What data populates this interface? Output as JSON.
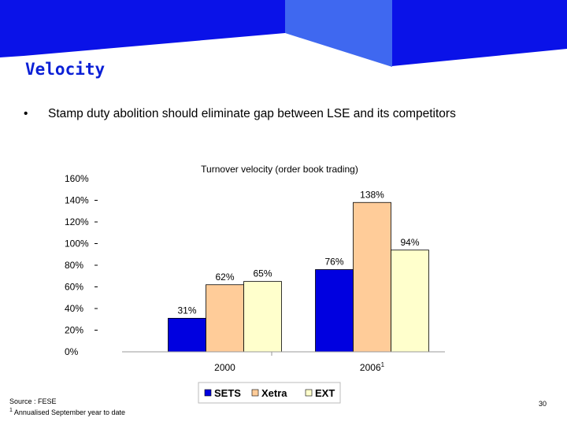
{
  "slide": {
    "title": "Velocity",
    "bullet_marker": "•",
    "bullet": "Stamp duty abolition should eliminate gap between LSE and its competitors",
    "source": "Source : FESE",
    "footnote_marker": "1",
    "footnote": "Annualised September year to date",
    "page_number": "30"
  },
  "colors": {
    "header_dark": "#0a12e8",
    "header_light": "#3f68f0",
    "title": "#0a1fd6"
  },
  "chart_data": {
    "type": "bar",
    "title": "Turnover velocity (order book trading)",
    "categories": [
      "2000",
      "2006"
    ],
    "category_superscripts": [
      "",
      "1"
    ],
    "series": [
      {
        "name": "SETS",
        "values": [
          31,
          76
        ],
        "color": "#0000e0"
      },
      {
        "name": "Xetra",
        "values": [
          62,
          138
        ],
        "color": "#ffcc99"
      },
      {
        "name": "EXT",
        "values": [
          65,
          94
        ],
        "color": "#ffffcc"
      }
    ],
    "data_labels": [
      [
        "31%",
        "76%"
      ],
      [
        "62%",
        "138%"
      ],
      [
        "65%",
        "94%"
      ]
    ],
    "y_ticks": [
      0,
      20,
      40,
      60,
      80,
      100,
      120,
      140,
      160
    ],
    "y_tick_labels": [
      "0%",
      "20%",
      "40%",
      "60%",
      "80%",
      "100%",
      "120%",
      "140%",
      "160%"
    ],
    "ylim": [
      0,
      160
    ],
    "xlabel": "",
    "ylabel": "",
    "legend_position": "bottom",
    "grid": false
  }
}
